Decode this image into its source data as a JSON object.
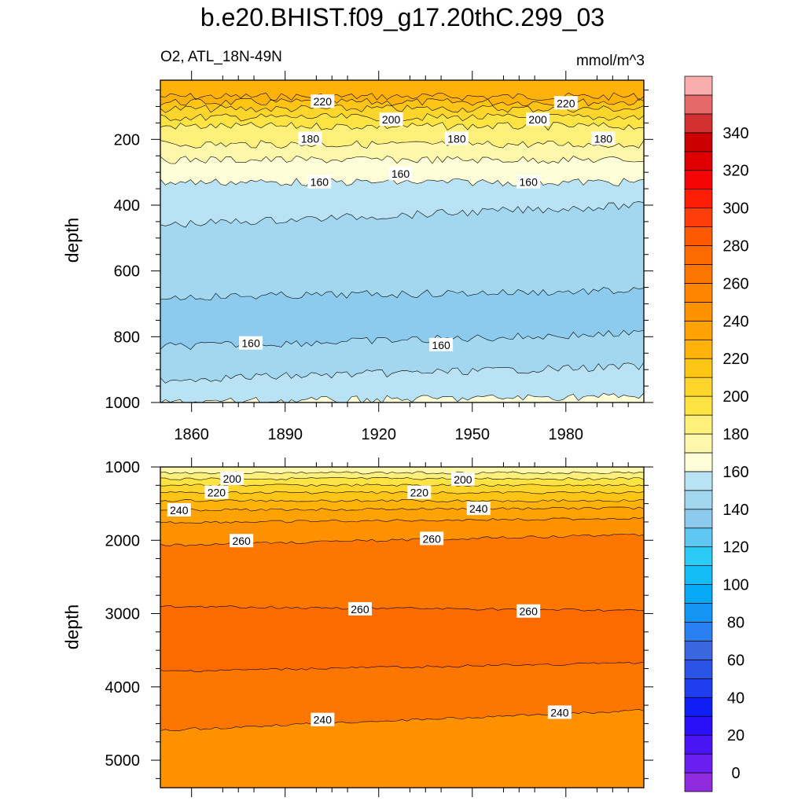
{
  "title": "b.e20.BHIST.f09_g17.20thC.299_03",
  "subtitle_left": "O2, ATL_18N-49N",
  "subtitle_right": "mmol/m^3",
  "chart_data": [
    {
      "type": "heatmap",
      "panel": "upper",
      "variable": "O2",
      "region": "ATL_18N-49N",
      "units": "mmol/m^3",
      "xlabel": "",
      "ylabel": "depth",
      "xlim": [
        1850,
        2005
      ],
      "ylim": [
        1000,
        20
      ],
      "x_ticks": [
        1860,
        1890,
        1920,
        1950,
        1980
      ],
      "y_ticks": [
        200,
        400,
        600,
        800,
        1000
      ],
      "contours": [
        {
          "level": 230,
          "depth": [
            70,
            70
          ]
        },
        {
          "level": 220,
          "depth": [
            87,
            87
          ]
        },
        {
          "level": 210,
          "depth": [
            107,
            107
          ]
        },
        {
          "level": 200,
          "depth": [
            133,
            133
          ]
        },
        {
          "level": 190,
          "depth": [
            160,
            160
          ]
        },
        {
          "level": 180,
          "depth": [
            215,
            215
          ]
        },
        {
          "level": 170,
          "depth": [
            262,
            262
          ]
        },
        {
          "level": 160,
          "depth": [
            330,
            330
          ]
        },
        {
          "level": 150,
          "depth": [
            460,
            400
          ]
        },
        {
          "level": 140,
          "depth": [
            680,
            660
          ]
        },
        {
          "level": 160,
          "depth": [
            830,
            790
          ]
        },
        {
          "level": 170,
          "depth": [
            930,
            890
          ]
        },
        {
          "level": 180,
          "depth": [
            1000,
            980
          ]
        }
      ],
      "contour_labels": [
        {
          "text": "220",
          "x": 1902,
          "y": 85
        },
        {
          "text": "220",
          "x": 1980,
          "y": 90
        },
        {
          "text": "200",
          "x": 1924,
          "y": 140
        },
        {
          "text": "200",
          "x": 1971,
          "y": 140
        },
        {
          "text": "180",
          "x": 1898,
          "y": 198
        },
        {
          "text": "180",
          "x": 1945,
          "y": 198
        },
        {
          "text": "180",
          "x": 1992,
          "y": 198
        },
        {
          "text": "160",
          "x": 1901,
          "y": 330
        },
        {
          "text": "160",
          "x": 1927,
          "y": 305
        },
        {
          "text": "160",
          "x": 1968,
          "y": 330
        },
        {
          "text": "160",
          "x": 1879,
          "y": 820
        },
        {
          "text": "160",
          "x": 1940,
          "y": 825
        }
      ]
    },
    {
      "type": "heatmap",
      "panel": "lower",
      "variable": "O2",
      "region": "ATL_18N-49N",
      "units": "mmol/m^3",
      "xlabel": "",
      "ylabel": "depth",
      "xlim": [
        1850,
        2005
      ],
      "ylim": [
        5375,
        1000
      ],
      "x_ticks": [
        1860,
        1890,
        1920,
        1950,
        1980
      ],
      "y_ticks": [
        1000,
        2000,
        3000,
        4000,
        5000
      ],
      "contours": [
        {
          "level": 190,
          "depth": [
            1080,
            1080
          ]
        },
        {
          "level": 200,
          "depth": [
            1160,
            1160
          ]
        },
        {
          "level": 210,
          "depth": [
            1250,
            1250
          ]
        },
        {
          "level": 220,
          "depth": [
            1350,
            1350
          ]
        },
        {
          "level": 230,
          "depth": [
            1460,
            1460
          ]
        },
        {
          "level": 240,
          "depth": [
            1590,
            1560
          ]
        },
        {
          "level": 250,
          "depth": [
            1760,
            1700
          ]
        },
        {
          "level": 260,
          "depth": [
            2070,
            1920
          ]
        },
        {
          "level": 260,
          "depth": [
            2900,
            2960
          ]
        },
        {
          "level": 250,
          "depth": [
            3790,
            3670
          ]
        },
        {
          "level": 240,
          "depth": [
            4590,
            4320
          ]
        }
      ],
      "contour_labels": [
        {
          "text": "200",
          "x": 1873,
          "y": 1160
        },
        {
          "text": "200",
          "x": 1947,
          "y": 1170
        },
        {
          "text": "220",
          "x": 1868,
          "y": 1350
        },
        {
          "text": "220",
          "x": 1933,
          "y": 1350
        },
        {
          "text": "240",
          "x": 1856,
          "y": 1590
        },
        {
          "text": "240",
          "x": 1952,
          "y": 1570
        },
        {
          "text": "260",
          "x": 1876,
          "y": 2010
        },
        {
          "text": "260",
          "x": 1937,
          "y": 1980
        },
        {
          "text": "260",
          "x": 1914,
          "y": 2940
        },
        {
          "text": "260",
          "x": 1968,
          "y": 2970
        },
        {
          "text": "240",
          "x": 1902,
          "y": 4450
        },
        {
          "text": "240",
          "x": 1978,
          "y": 4350
        }
      ]
    }
  ],
  "colorbar": {
    "tick_labels": [
      "0",
      "20",
      "40",
      "60",
      "80",
      "100",
      "120",
      "140",
      "160",
      "180",
      "200",
      "220",
      "240",
      "260",
      "280",
      "300",
      "320",
      "340"
    ],
    "colors": [
      "#8e2bdc",
      "#6a1ef0",
      "#4a15f5",
      "#2a10f8",
      "#0f1ef5",
      "#1e3ef0",
      "#2a54e6",
      "#3a66e0",
      "#2a80f0",
      "#1596f5",
      "#07a8f5",
      "#12bdf5",
      "#2ccbf5",
      "#5ec8f2",
      "#8ccbed",
      "#a3d7f0",
      "#b9e2f5",
      "#fdfdd8",
      "#fdf7ac",
      "#fef07a",
      "#fee442",
      "#fed52a",
      "#fec515",
      "#feb20a",
      "#fea303",
      "#fe9100",
      "#fd8500",
      "#fd7700",
      "#fd6a00",
      "#fd5a00",
      "#fd3d0a",
      "#fd1e05",
      "#f50505",
      "#de0000",
      "#cc0000",
      "#d23030",
      "#e56868",
      "#f8acac"
    ]
  },
  "level_colors": {
    "140": "#8ccbed",
    "150": "#a3d7f0",
    "160": "#b9e2f5",
    "170": "#fdfdd8",
    "180": "#fdf7ac",
    "190": "#fef07a",
    "200": "#fee442",
    "210": "#fed52a",
    "220": "#fec515",
    "230": "#feb20a",
    "240": "#fea303",
    "250": "#fd9100",
    "260": "#fd7700",
    "270": "#fd6a00"
  }
}
